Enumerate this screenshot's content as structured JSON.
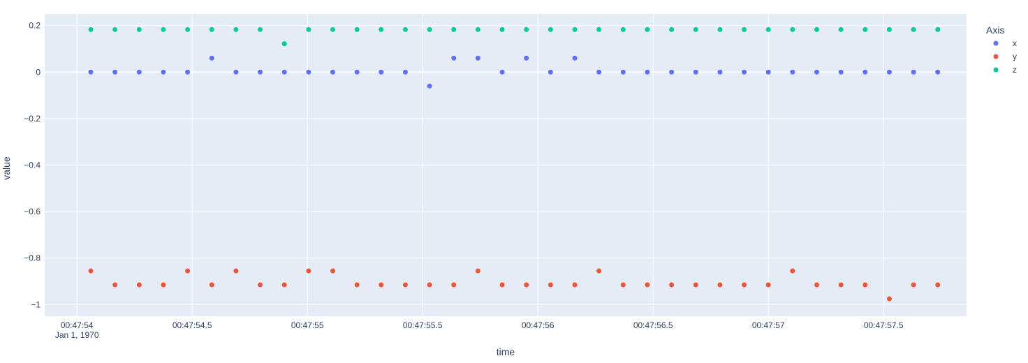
{
  "chart_data": {
    "type": "scatter",
    "title": "",
    "xlabel": "time",
    "ylabel": "value",
    "legend": {
      "title": "Axis",
      "placement": "right"
    },
    "grid": true,
    "x_unit": "seconds after 00:47:54 (Jan 1, 1970)",
    "xlim": [
      -0.14,
      3.86
    ],
    "ylim": [
      -1.05,
      0.25
    ],
    "x_ticks": [
      {
        "value": 0.0,
        "label": "00:47:54",
        "sublabel": "Jan 1, 1970"
      },
      {
        "value": 0.5,
        "label": "00:47:54.5",
        "sublabel": ""
      },
      {
        "value": 1.0,
        "label": "00:47:55",
        "sublabel": ""
      },
      {
        "value": 1.5,
        "label": "00:47:55.5",
        "sublabel": ""
      },
      {
        "value": 2.0,
        "label": "00:47:56",
        "sublabel": ""
      },
      {
        "value": 2.5,
        "label": "00:47:56.5",
        "sublabel": ""
      },
      {
        "value": 3.0,
        "label": "00:47:57",
        "sublabel": ""
      },
      {
        "value": 3.5,
        "label": "00:47:57.5",
        "sublabel": ""
      }
    ],
    "y_ticks": [
      {
        "value": 0.2,
        "label": "0.2"
      },
      {
        "value": 0.0,
        "label": "0"
      },
      {
        "value": -0.2,
        "label": "−0.2"
      },
      {
        "value": -0.4,
        "label": "−0.4"
      },
      {
        "value": -0.6,
        "label": "−0.6"
      },
      {
        "value": -0.8,
        "label": "−0.8"
      },
      {
        "value": -1.0,
        "label": "−1"
      }
    ],
    "x": [
      0.06,
      0.165,
      0.27,
      0.375,
      0.48,
      0.585,
      0.69,
      0.795,
      0.9,
      1.005,
      1.11,
      1.215,
      1.32,
      1.425,
      1.53,
      1.635,
      1.74,
      1.845,
      1.95,
      2.055,
      2.16,
      2.265,
      2.37,
      2.475,
      2.58,
      2.685,
      2.79,
      2.895,
      3.0,
      3.105,
      3.21,
      3.315,
      3.42,
      3.525,
      3.63,
      3.735
    ],
    "series": [
      {
        "name": "x",
        "color": "#636efa",
        "values": [
          0,
          0,
          0,
          0,
          0,
          0.06,
          0,
          0,
          0,
          0,
          0,
          0,
          0,
          0,
          -0.06,
          0.06,
          0.06,
          0,
          0.06,
          0,
          0.06,
          0,
          0,
          0,
          0,
          0,
          0,
          0,
          0,
          0,
          0,
          0,
          0,
          0,
          0,
          0
        ]
      },
      {
        "name": "y",
        "color": "#ef553b",
        "values": [
          -0.855,
          -0.915,
          -0.915,
          -0.915,
          -0.855,
          -0.915,
          -0.855,
          -0.915,
          -0.915,
          -0.855,
          -0.855,
          -0.915,
          -0.915,
          -0.915,
          -0.915,
          -0.915,
          -0.855,
          -0.915,
          -0.915,
          -0.915,
          -0.915,
          -0.855,
          -0.915,
          -0.915,
          -0.915,
          -0.915,
          -0.915,
          -0.915,
          -0.915,
          -0.855,
          -0.915,
          -0.915,
          -0.915,
          -0.975,
          -0.915,
          -0.915
        ]
      },
      {
        "name": "z",
        "color": "#00cc96",
        "values": [
          0.183,
          0.183,
          0.183,
          0.183,
          0.183,
          0.183,
          0.183,
          0.183,
          0.122,
          0.183,
          0.183,
          0.183,
          0.183,
          0.183,
          0.183,
          0.183,
          0.183,
          0.183,
          0.183,
          0.183,
          0.183,
          0.183,
          0.183,
          0.183,
          0.183,
          0.183,
          0.183,
          0.183,
          0.183,
          0.183,
          0.183,
          0.183,
          0.183,
          0.183,
          0.183,
          0.183
        ]
      }
    ],
    "colors": {
      "plot_bg": "#e5ecf6",
      "grid": "#ffffff",
      "text": "#2a3f5f"
    }
  }
}
